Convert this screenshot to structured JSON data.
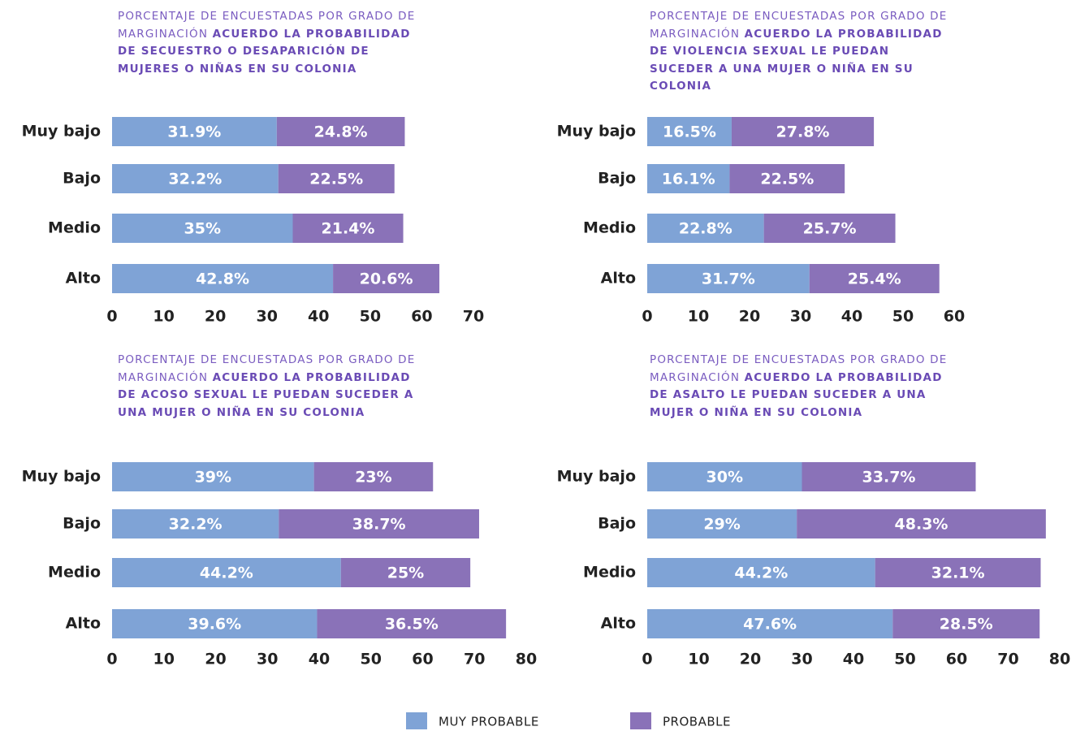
{
  "chart_data": [
    {
      "type": "bar",
      "orientation": "horizontal",
      "stacked": true,
      "title": "PORCENTAJE DE ENCUESTADAS POR GRADO DE MARGINACIÓN",
      "subtitle": "ACUERDO LA PROBABILIDAD DE SECUESTRO O DESAPARICIÓN DE MUJERES O NIÑAS EN SU COLONIA",
      "categories": [
        "Muy bajo",
        "Bajo",
        "Medio",
        "Alto"
      ],
      "series": [
        {
          "name": "MUY PROBABLE",
          "color": "#7fa3d6",
          "values": [
            31.9,
            32.2,
            35,
            42.8
          ],
          "value_labels": [
            "31.9%",
            "32.2%",
            "35%",
            "42.8%"
          ]
        },
        {
          "name": "PROBABLE",
          "color": "#8a72b8",
          "values": [
            24.8,
            22.5,
            21.4,
            20.6
          ],
          "value_labels": [
            "24.8%",
            "22.5%",
            "21.4%",
            "20.6%"
          ]
        }
      ],
      "xlim": [
        0,
        70
      ],
      "xticks": [
        0,
        10,
        20,
        30,
        40,
        50,
        60,
        70
      ]
    },
    {
      "type": "bar",
      "orientation": "horizontal",
      "stacked": true,
      "title": "PORCENTAJE DE ENCUESTADAS POR GRADO DE MARGINACIÓN",
      "subtitle": "ACUERDO LA PROBABILIDAD DE VIOLENCIA SEXUAL LE PUEDAN SUCEDER A UNA MUJER O NIÑA EN SU COLONIA",
      "categories": [
        "Muy bajo",
        "Bajo",
        "Medio",
        "Alto"
      ],
      "series": [
        {
          "name": "MUY PROBABLE",
          "color": "#7fa3d6",
          "values": [
            16.5,
            16.1,
            22.8,
            31.7
          ],
          "value_labels": [
            "16.5%",
            "16.1%",
            "22.8%",
            "31.7%"
          ]
        },
        {
          "name": "PROBABLE",
          "color": "#8a72b8",
          "values": [
            27.8,
            22.5,
            25.7,
            25.4
          ],
          "value_labels": [
            "27.8%",
            "22.5%",
            "25.7%",
            "25.4%"
          ]
        }
      ],
      "xlim": [
        0,
        60
      ],
      "xticks": [
        0,
        10,
        20,
        30,
        40,
        50,
        60
      ]
    },
    {
      "type": "bar",
      "orientation": "horizontal",
      "stacked": true,
      "title": "PORCENTAJE DE ENCUESTADAS POR GRADO DE MARGINACIÓN",
      "subtitle": "ACUERDO LA PROBABILIDAD DE ACOSO SEXUAL LE PUEDAN SUCEDER A UNA MUJER O NIÑA EN SU COLONIA",
      "categories": [
        "Muy bajo",
        "Bajo",
        "Medio",
        "Alto"
      ],
      "series": [
        {
          "name": "MUY PROBABLE",
          "color": "#7fa3d6",
          "values": [
            39,
            32.2,
            44.2,
            39.6
          ],
          "value_labels": [
            "39%",
            "32.2%",
            "44.2%",
            "39.6%"
          ]
        },
        {
          "name": "PROBABLE",
          "color": "#8a72b8",
          "values": [
            23,
            38.7,
            25,
            36.5
          ],
          "value_labels": [
            "23%",
            "38.7%",
            "25%",
            "36.5%"
          ]
        }
      ],
      "xlim": [
        0,
        80
      ],
      "xticks": [
        0,
        10,
        20,
        30,
        40,
        50,
        60,
        70,
        80
      ]
    },
    {
      "type": "bar",
      "orientation": "horizontal",
      "stacked": true,
      "title": "PORCENTAJE DE ENCUESTADAS POR GRADO DE MARGINACIÓN",
      "subtitle": "ACUERDO LA PROBABILIDAD DE ASALTO LE PUEDAN SUCEDER A UNA MUJER O NIÑA EN SU COLONIA",
      "categories": [
        "Muy bajo",
        "Bajo",
        "Medio",
        "Alto"
      ],
      "series": [
        {
          "name": "MUY PROBABLE",
          "color": "#7fa3d6",
          "values": [
            30,
            29,
            44.2,
            47.6
          ],
          "value_labels": [
            "30%",
            "29%",
            "44.2%",
            "47.6%"
          ]
        },
        {
          "name": "PROBABLE",
          "color": "#8a72b8",
          "values": [
            33.7,
            48.3,
            32.1,
            28.5
          ],
          "value_labels": [
            "33.7%",
            "48.3%",
            "32.1%",
            "28.5%"
          ]
        }
      ],
      "xlim": [
        0,
        80
      ],
      "xticks": [
        0,
        10,
        20,
        30,
        40,
        50,
        60,
        70,
        80
      ]
    }
  ]
}
